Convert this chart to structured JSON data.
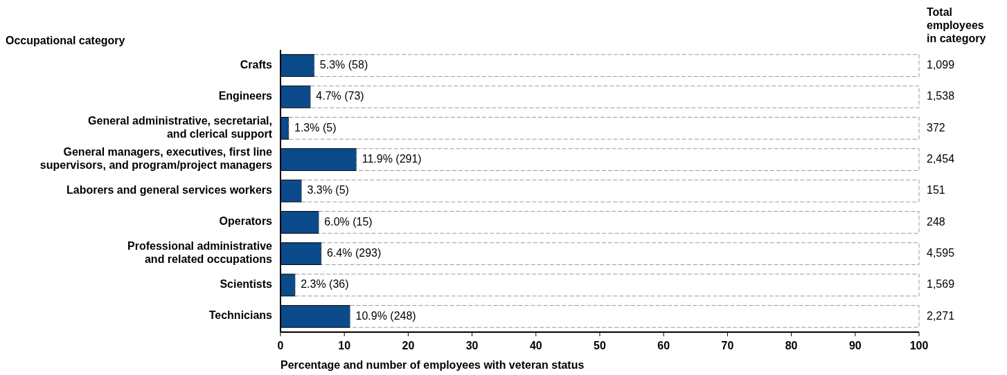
{
  "chart_data": {
    "type": "bar",
    "orientation": "horizontal",
    "stacked": true,
    "ylabel": "Occupational category",
    "xlabel": "Percentage and number of employees with veteran status",
    "categories": [
      "Crafts",
      "Engineers",
      "General administrative, secretarial,\nand clerical support",
      "General managers, executives, first line\nsupervisors, and program/project managers",
      "Laborers and general services workers",
      "Operators",
      "Professional administrative\nand related occupations",
      "Scientists",
      "Technicians"
    ],
    "series": [
      {
        "color": "#0b4a8b",
        "values": [
          5.3,
          4.7,
          1.3,
          11.9,
          3.3,
          6.0,
          6.4,
          2.3,
          10.9
        ],
        "value_labels": [
          "5.3% (58)",
          "4.7% (73)",
          "1.3% (5)",
          "11.9% (291)",
          "3.3% (5)",
          "6.0% (15)",
          "6.4% (293)",
          "2.3% (36)",
          "10.9% (248)"
        ]
      },
      {
        "color": "#ffffff",
        "line_style": "dashed",
        "values": [
          94.7,
          95.3,
          98.7,
          88.1,
          96.7,
          94.0,
          93.6,
          97.7,
          89.1
        ]
      }
    ],
    "xlim": [
      0,
      100
    ],
    "xticks": [
      0,
      10,
      20,
      30,
      40,
      50,
      60,
      70,
      80,
      90,
      100
    ],
    "grid": false,
    "annotations": [
      "Total\nemployees\nin category",
      "1,099",
      "1,538",
      "372",
      "2,454",
      "151",
      "248",
      "4,595",
      "1,569",
      "2,271"
    ]
  }
}
